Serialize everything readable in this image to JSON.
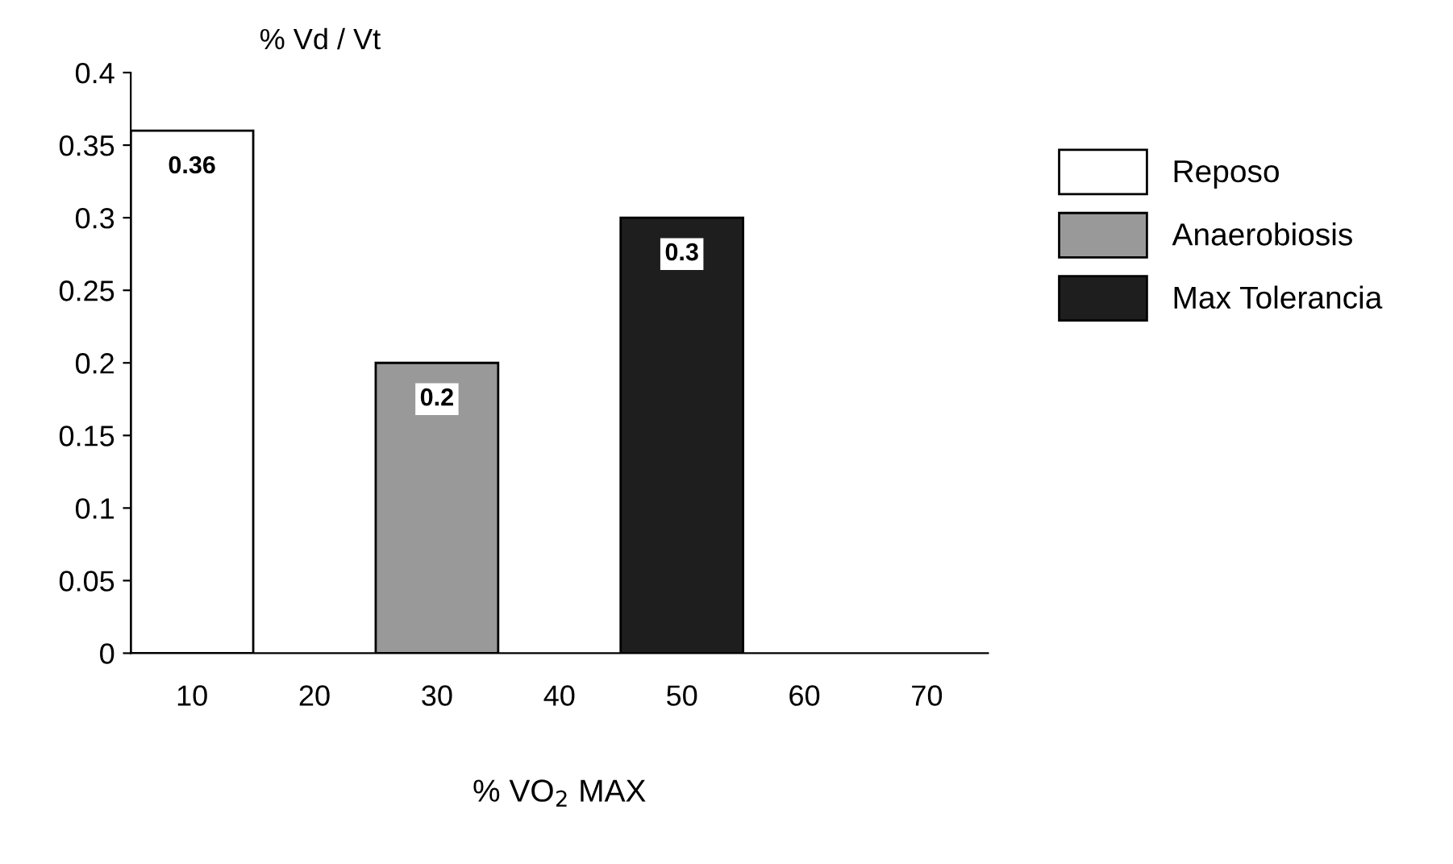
{
  "chart_data": {
    "type": "bar",
    "ylabel": "% Vd / Vt",
    "xlabel": "% VO$_{2}$ MAX",
    "categories": [
      "10",
      "20",
      "30",
      "40",
      "50",
      "60",
      "70"
    ],
    "series": [
      {
        "name": "Reposo",
        "color": "#ffffff",
        "values": [
          0.36,
          null,
          null,
          null,
          null,
          null,
          null
        ]
      },
      {
        "name": "Anaerobiosis",
        "color": "#999999",
        "values": [
          null,
          null,
          0.2,
          null,
          null,
          null,
          null
        ]
      },
      {
        "name": "Max Tolerancia",
        "color": "#1e1e1e",
        "values": [
          null,
          null,
          null,
          null,
          0.3,
          null,
          null
        ]
      }
    ],
    "ylim": [
      0,
      0.4
    ],
    "yticks": [
      0,
      0.05,
      0.1,
      0.15,
      0.2,
      0.25,
      0.3,
      0.35,
      0.4
    ],
    "data_labels": true,
    "legend": "right",
    "grid": false
  }
}
